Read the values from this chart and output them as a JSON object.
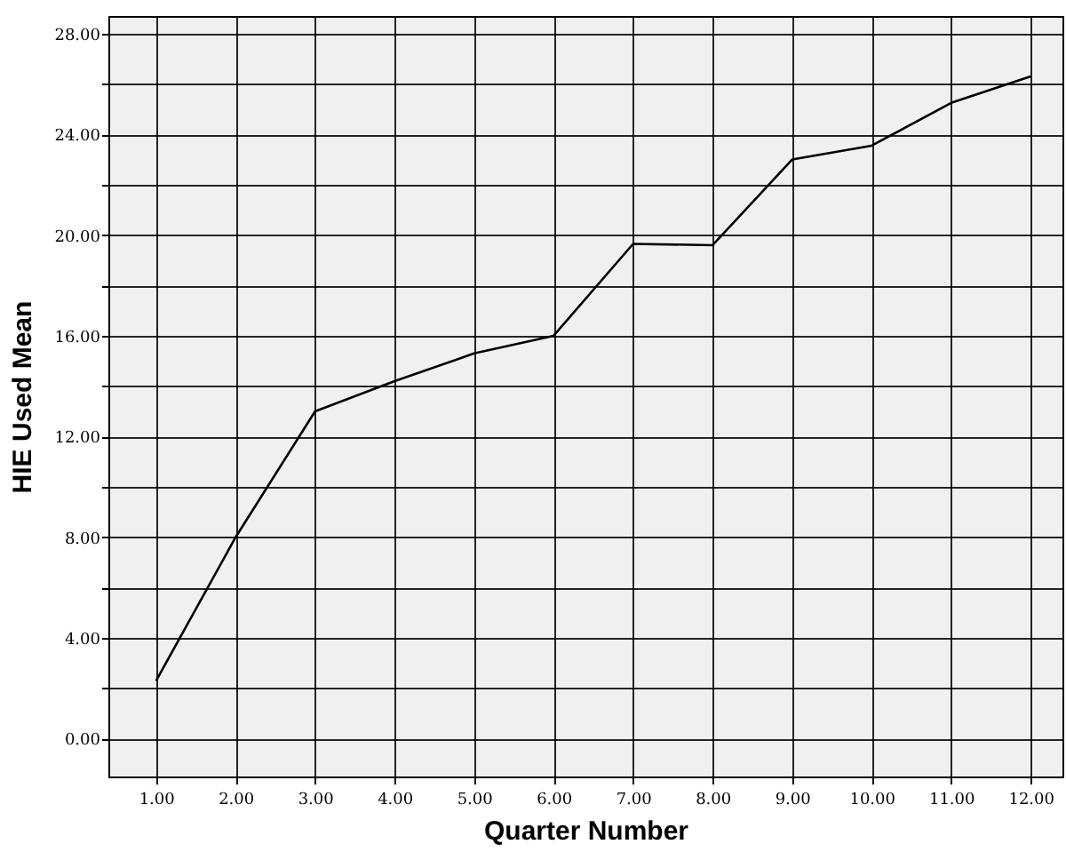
{
  "chart_data": {
    "type": "line",
    "xlabel": "Quarter Number",
    "ylabel": "HIE Used Mean",
    "x": [
      1,
      2,
      3,
      4,
      5,
      6,
      7,
      8,
      9,
      10,
      11,
      12
    ],
    "series": [
      {
        "color": "#000000",
        "values": [
          2.3,
          8.0,
          13.0,
          14.2,
          15.3,
          16.0,
          19.65,
          19.6,
          23.0,
          23.55,
          25.25,
          26.3
        ]
      }
    ],
    "xlim": [
      0.4,
      12.4
    ],
    "xticks": [
      {
        "value": 1,
        "label": "1.00"
      },
      {
        "value": 2,
        "label": "2.00"
      },
      {
        "value": 3,
        "label": "3.00"
      },
      {
        "value": 4,
        "label": "4.00"
      },
      {
        "value": 5,
        "label": "5.00"
      },
      {
        "value": 6,
        "label": "6.00"
      },
      {
        "value": 7,
        "label": "7.00"
      },
      {
        "value": 8,
        "label": "8.00"
      },
      {
        "value": 9,
        "label": "9.00"
      },
      {
        "value": 10,
        "label": "10.00"
      },
      {
        "value": 11,
        "label": "11.00"
      },
      {
        "value": 12,
        "label": "12.00"
      }
    ],
    "ylim": [
      -1.5,
      28.7
    ],
    "yticks": [
      {
        "value": 0,
        "label": "0.00"
      },
      {
        "value": 2,
        "label": null
      },
      {
        "value": 4,
        "label": "4.00"
      },
      {
        "value": 6,
        "label": null
      },
      {
        "value": 8,
        "label": "8.00"
      },
      {
        "value": 10,
        "label": null
      },
      {
        "value": 12,
        "label": "12.00"
      },
      {
        "value": 14,
        "label": null
      },
      {
        "value": 16,
        "label": "16.00"
      },
      {
        "value": 18,
        "label": null
      },
      {
        "value": 20,
        "label": "20.00"
      },
      {
        "value": 22,
        "label": null
      },
      {
        "value": 24,
        "label": "24.00"
      },
      {
        "value": 26,
        "label": null
      },
      {
        "value": 28,
        "label": "28.00"
      }
    ],
    "grid": true,
    "marker": "none",
    "line_style": "solid"
  }
}
